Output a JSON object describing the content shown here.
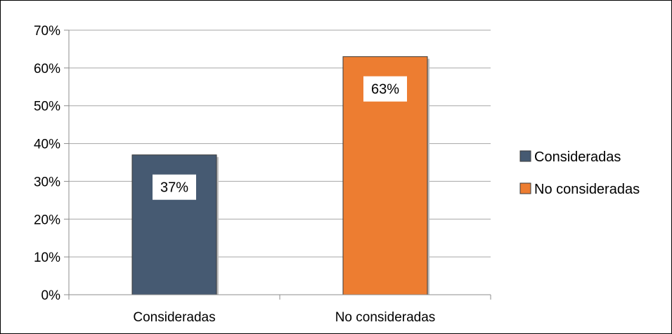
{
  "chart_data": {
    "type": "bar",
    "categories": [
      "Consideradas",
      "No consideradas"
    ],
    "values": [
      37,
      63
    ],
    "value_format": "percent",
    "data_labels": [
      "37%",
      "63%"
    ],
    "colors": [
      "#465A72",
      "#ED7D31"
    ],
    "yticks": [
      "0%",
      "10%",
      "20%",
      "30%",
      "40%",
      "50%",
      "60%",
      "70%"
    ],
    "ylim": [
      0,
      70
    ],
    "grid": true,
    "legend": {
      "placement": "right",
      "entries": [
        "Consideradas",
        "No consideradas"
      ]
    },
    "title": "",
    "xlabel": "",
    "ylabel": ""
  }
}
